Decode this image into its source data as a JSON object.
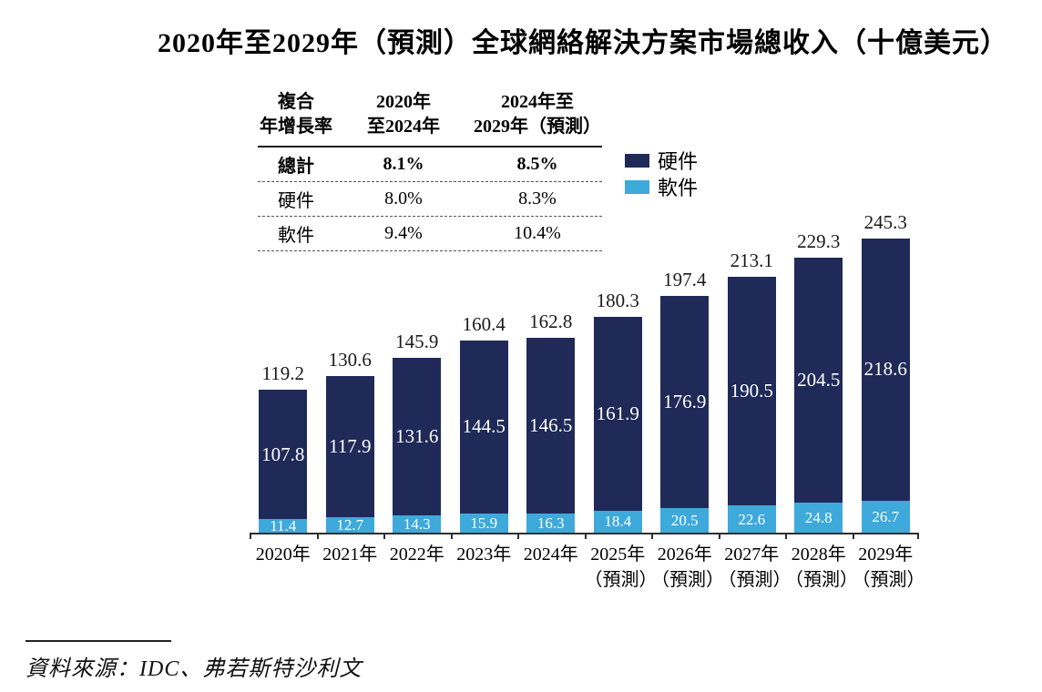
{
  "title": "2020年至2029年（預測）全球網絡解決方案市場總收入（十億美元）",
  "table": {
    "header": {
      "col1": [
        "複合",
        "年增長率"
      ],
      "col2": [
        "2020年",
        "至2024年"
      ],
      "col3": [
        "2024年至",
        "2029年（預測）"
      ]
    },
    "rows": [
      {
        "label": "總計",
        "cagr_2020_2024": "8.1%",
        "cagr_2024_2029": "8.5%",
        "bold": true
      },
      {
        "label": "硬件",
        "cagr_2020_2024": "8.0%",
        "cagr_2024_2029": "8.3%",
        "bold": false
      },
      {
        "label": "軟件",
        "cagr_2020_2024": "9.4%",
        "cagr_2024_2029": "10.4%",
        "bold": false
      }
    ]
  },
  "legend": [
    {
      "label": "硬件",
      "color": "#1f2a58"
    },
    {
      "label": "軟件",
      "color": "#3ea9db"
    }
  ],
  "colors": {
    "hardware": "#1f2a58",
    "software": "#3ea9db",
    "axis": "#2f2f2f"
  },
  "chart_data": {
    "type": "bar",
    "stacked": true,
    "title": "2020年至2029年（預測）全球網絡解決方案市場總收入（十億美元）",
    "categories": [
      "2020年",
      "2021年",
      "2022年",
      "2023年",
      "2024年",
      "2025年\n（預測）",
      "2026年\n（預測）",
      "2027年\n（預測）",
      "2028年\n（預測）",
      "2029年\n（預測）"
    ],
    "series": [
      {
        "name": "硬件",
        "color": "#1f2a58",
        "values": [
          107.8,
          117.9,
          131.6,
          144.5,
          146.5,
          161.9,
          176.9,
          190.5,
          204.5,
          218.6
        ]
      },
      {
        "name": "軟件",
        "color": "#3ea9db",
        "values": [
          11.4,
          12.7,
          14.3,
          15.9,
          16.3,
          18.4,
          20.5,
          22.6,
          24.8,
          26.7
        ]
      }
    ],
    "totals": [
      119.2,
      130.6,
      145.9,
      160.4,
      162.8,
      180.3,
      197.4,
      213.1,
      229.3,
      245.3
    ],
    "ylim": [
      0,
      260
    ],
    "grid": false,
    "legend_position": "top-right",
    "xlabel": "",
    "ylabel": ""
  },
  "source": "資料來源：IDC、弗若斯特沙利文"
}
